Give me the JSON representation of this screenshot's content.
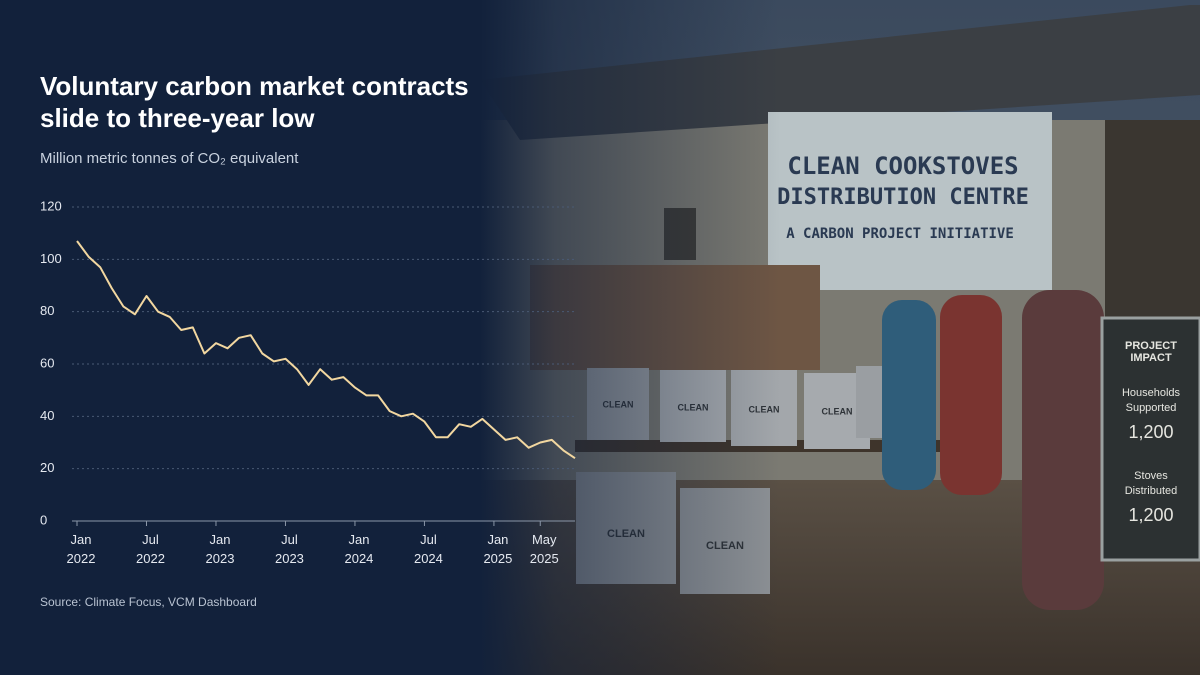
{
  "chart_data": {
    "type": "line",
    "title": "Voluntary carbon market contracts slide to three-year low",
    "subtitle": "Million metric tonnes of CO₂ equivalent",
    "source": "Source: Climate Focus, VCM Dashboard",
    "x": [
      "2022-01",
      "2022-02",
      "2022-03",
      "2022-04",
      "2022-05",
      "2022-06",
      "2022-07",
      "2022-08",
      "2022-09",
      "2022-10",
      "2022-11",
      "2022-12",
      "2023-01",
      "2023-02",
      "2023-03",
      "2023-04",
      "2023-05",
      "2023-06",
      "2023-07",
      "2023-08",
      "2023-09",
      "2023-10",
      "2023-11",
      "2023-12",
      "2024-01",
      "2024-02",
      "2024-03",
      "2024-04",
      "2024-05",
      "2024-06",
      "2024-07",
      "2024-08",
      "2024-09",
      "2024-10",
      "2024-11",
      "2024-12",
      "2025-01",
      "2025-02",
      "2025-03",
      "2025-04",
      "2025-05",
      "2025-06",
      "2025-07",
      "2025-08"
    ],
    "values": [
      107,
      101,
      97,
      89,
      82,
      79,
      86,
      80,
      78,
      73,
      74,
      64,
      68,
      66,
      70,
      71,
      64,
      61,
      62,
      58,
      52,
      58,
      54,
      55,
      51,
      48,
      48,
      42,
      40,
      41,
      38,
      32,
      32,
      37,
      36,
      39,
      35,
      31,
      32,
      28,
      30,
      31,
      27,
      24
    ],
    "color": "#f2d7a0",
    "ylim": [
      0,
      120
    ],
    "yticks": [
      0,
      20,
      40,
      60,
      80,
      100,
      120
    ],
    "xticks": [
      {
        "value": "2022-01",
        "label": "Jan 2022"
      },
      {
        "value": "2022-07",
        "label": "Jul 2022"
      },
      {
        "value": "2023-01",
        "label": "Jan 2023"
      },
      {
        "value": "2023-07",
        "label": "Jul 2023"
      },
      {
        "value": "2024-01",
        "label": "Jan 2024"
      },
      {
        "value": "2024-07",
        "label": "Jul 2024"
      },
      {
        "value": "2025-01",
        "label": "Jan 2025"
      },
      {
        "value": "2025-05",
        "label": "May 2025"
      }
    ],
    "grid": true
  },
  "photo_text": {
    "sign": [
      "CLEAN COOKSTOVES",
      "DISTRIBUTION CENTRE",
      "A CARBON PROJECT INITIATIVE"
    ],
    "stove_label": "CLEAN",
    "board": {
      "title": "PROJECT IMPACT",
      "items": [
        {
          "label": "Households Supported",
          "value": "1,200"
        },
        {
          "label": "Stoves Distributed",
          "value": "1,200"
        }
      ]
    }
  }
}
